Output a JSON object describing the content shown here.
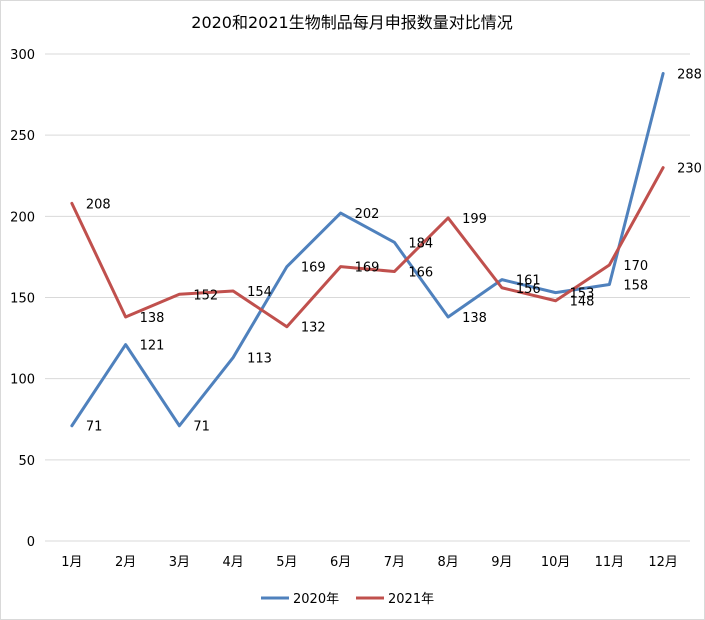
{
  "chart_data": {
    "type": "line",
    "title": "2020和2021生物制品每月申报数量对比情况",
    "xlabel": "",
    "ylabel": "",
    "categories": [
      "1月",
      "2月",
      "3月",
      "4月",
      "5月",
      "6月",
      "7月",
      "8月",
      "9月",
      "10月",
      "11月",
      "12月"
    ],
    "ylim": [
      0,
      300
    ],
    "yticks": [
      0,
      50,
      100,
      150,
      200,
      250,
      300
    ],
    "grid": true,
    "legend_position": "bottom",
    "series": [
      {
        "name": "2020年",
        "color": "#4f81bd",
        "values": [
          71,
          121,
          71,
          113,
          169,
          202,
          184,
          138,
          161,
          153,
          158,
          288
        ]
      },
      {
        "name": "2021年",
        "color": "#c0504d",
        "values": [
          208,
          138,
          152,
          154,
          132,
          169,
          166,
          199,
          156,
          148,
          170,
          230
        ]
      }
    ]
  }
}
